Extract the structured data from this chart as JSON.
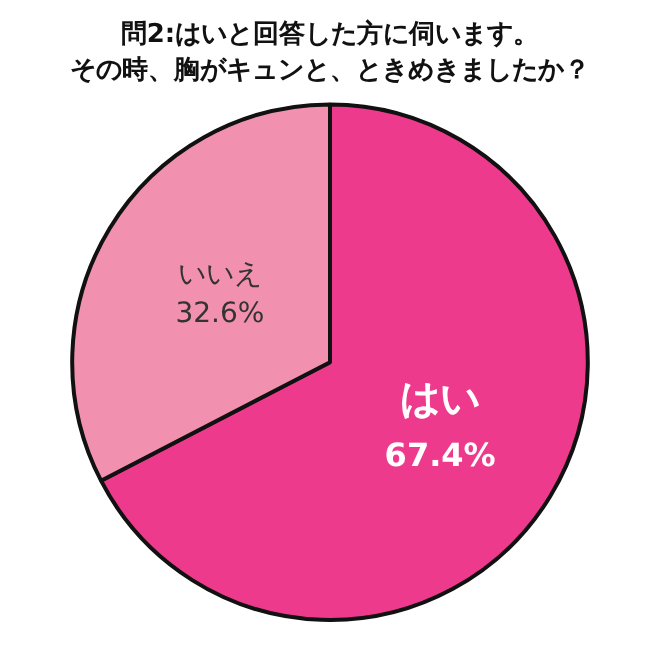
{
  "chart_data": {
    "type": "pie",
    "title": "問2:はいと回答した方に伺います。",
    "subtitle": "その時、胸がキュンと、ときめきましたか？",
    "categories": [
      "はい",
      "いいえ"
    ],
    "values": [
      67.4,
      32.6
    ],
    "value_labels": [
      "67.4%",
      "32.6%"
    ],
    "colors": [
      "#ee3a8c",
      "#f290b0"
    ],
    "legend": false
  }
}
